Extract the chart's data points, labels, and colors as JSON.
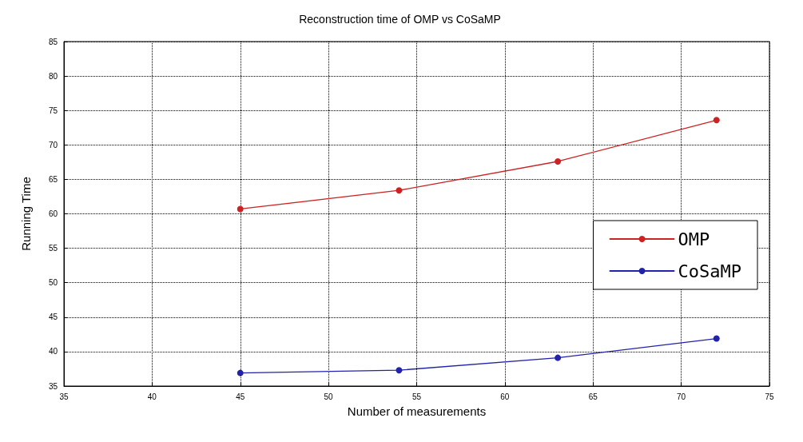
{
  "chart_data": {
    "type": "line",
    "title": "Reconstruction time of OMP vs CoSaMP",
    "xlabel": "Number of measurements",
    "ylabel": "Running Time",
    "x": [
      45,
      54,
      63,
      72
    ],
    "series": [
      {
        "name": "OMP",
        "color": "#cc2222",
        "values": [
          60.7,
          63.4,
          67.6,
          73.6
        ]
      },
      {
        "name": "CoSaMP",
        "color": "#2222aa",
        "values": [
          36.9,
          37.3,
          39.1,
          41.9
        ]
      }
    ],
    "xlim": [
      35,
      75
    ],
    "xticks": [
      35,
      40,
      45,
      50,
      55,
      60,
      65,
      70,
      75
    ],
    "ylim": [
      35,
      85
    ],
    "yticks": [
      35,
      40,
      45,
      50,
      55,
      60,
      65,
      70,
      75,
      80,
      85
    ],
    "grid": true,
    "legend": "right",
    "marker": "circle",
    "line_style": "solid"
  }
}
